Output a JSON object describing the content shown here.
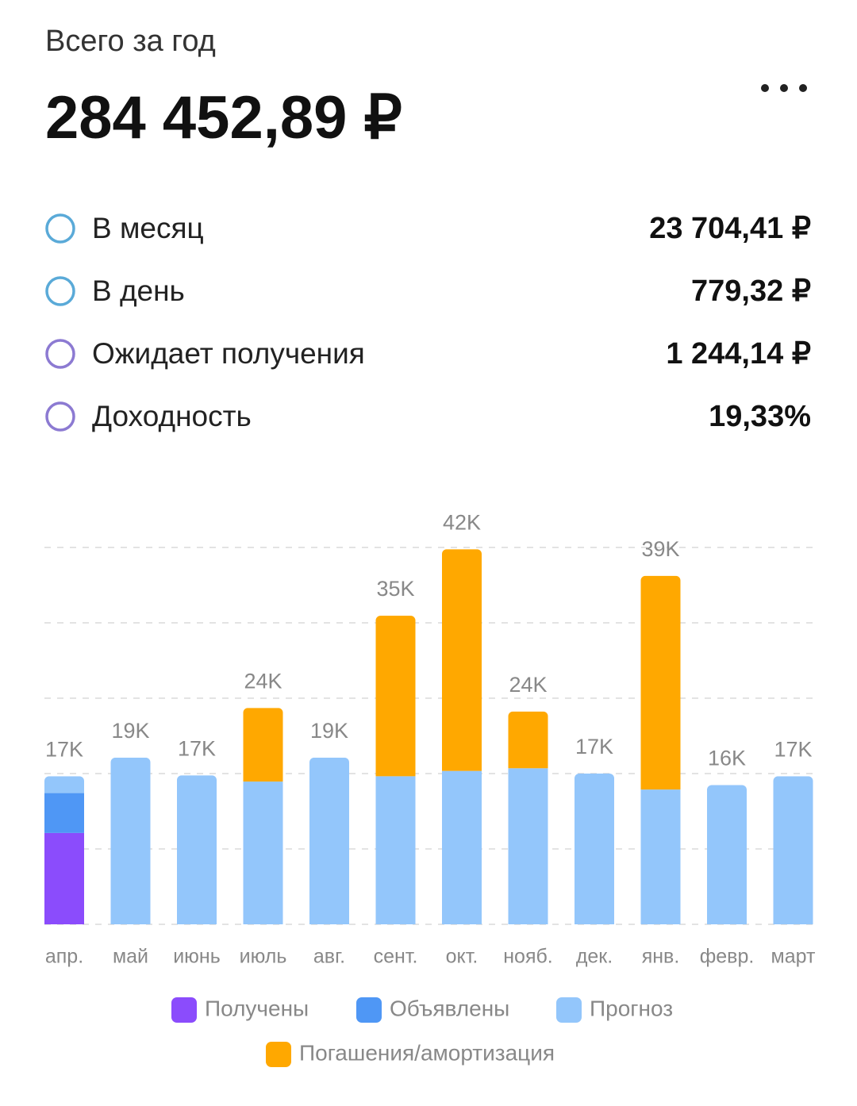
{
  "header": {
    "title": "Всего за год",
    "total": "284 452,89 ₽"
  },
  "items": [
    {
      "label": "В месяц",
      "value": "23 704,41 ₽",
      "color": "#5aaad8"
    },
    {
      "label": "В день",
      "value": "779,32 ₽",
      "color": "#5aaad8"
    },
    {
      "label": "Ожидает получения",
      "value": "1 244,14 ₽",
      "color": "#8c7ad2"
    },
    {
      "label": "Доходность",
      "value": "19,33%",
      "color": "#8c7ad2"
    }
  ],
  "chart_data": {
    "type": "bar",
    "stacked": true,
    "categories": [
      "апр.",
      "май",
      "июнь",
      "июль",
      "авг.",
      "сент.",
      "окт.",
      "нояб.",
      "дек.",
      "янв.",
      "февр.",
      "март"
    ],
    "series": [
      {
        "name": "Получены",
        "color": "#8b4cfc",
        "values": [
          10300,
          0,
          0,
          0,
          0,
          0,
          0,
          0,
          0,
          0,
          0,
          0
        ]
      },
      {
        "name": "Объявлены",
        "color": "#4f97f5",
        "values": [
          4500,
          0,
          0,
          0,
          0,
          0,
          0,
          0,
          0,
          0,
          0,
          0
        ]
      },
      {
        "name": "Прогноз",
        "color": "#93c6fb",
        "values": [
          1900,
          18800,
          16800,
          16100,
          18800,
          16700,
          17300,
          17600,
          17000,
          15200,
          15700,
          16700
        ]
      },
      {
        "name": "Погашения/амортизация",
        "color": "#ffa800",
        "values": [
          0,
          0,
          0,
          8300,
          0,
          18100,
          25000,
          6400,
          0,
          24100,
          0,
          0
        ]
      }
    ],
    "total_labels": [
      "17K",
      "19K",
      "17K",
      "24K",
      "19K",
      "35K",
      "42K",
      "24K",
      "17K",
      "39K",
      "16K",
      "17K"
    ],
    "ylim": [
      0,
      42500
    ],
    "yticks": [
      0,
      8500,
      17000,
      25500,
      34000,
      42500
    ],
    "grid": true
  }
}
